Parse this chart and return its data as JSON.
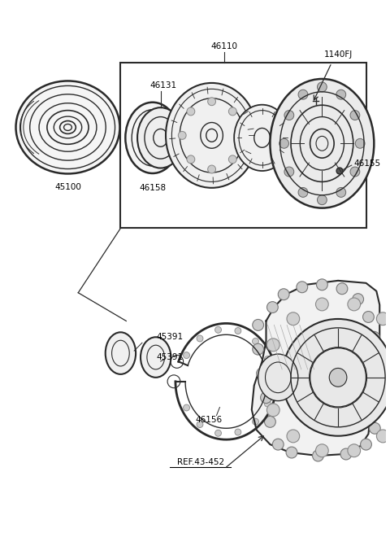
{
  "background_color": "#ffffff",
  "line_color": "#2a2a2a",
  "text_color": "#000000",
  "fig_w": 4.8,
  "fig_h": 6.55,
  "dpi": 100
}
